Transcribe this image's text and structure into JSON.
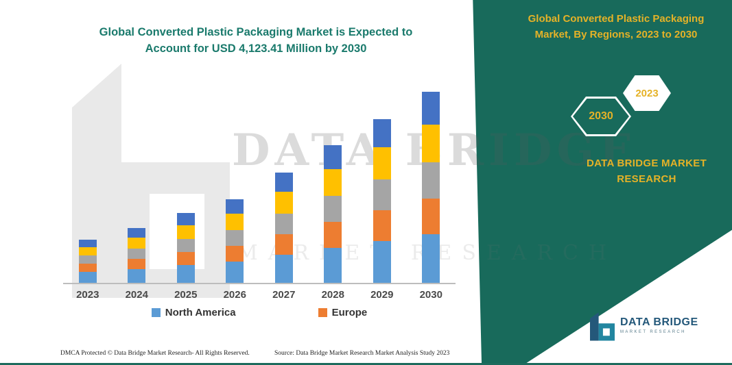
{
  "header": {
    "main_title": "Global Converted Plastic Packaging Market is Expected to Account for USD 4,123.41 Million by 2030"
  },
  "side_panel": {
    "title": "Global Converted Plastic Packaging Market, By Regions, 2023 to 2030",
    "badges": [
      {
        "label": "2030"
      },
      {
        "label": "2023"
      }
    ],
    "brand": "DATA BRIDGE MARKET RESEARCH",
    "colors": {
      "panel": "#186a5b",
      "accent_gold": "#e5b227"
    }
  },
  "watermark": {
    "line1": "DATA BRIDGE",
    "line2": "MARKET RESEARCH"
  },
  "chart_data": {
    "type": "bar",
    "stacked": true,
    "title": "Global Converted Plastic Packaging Market is Expected to Account for USD 4,123.41 Million by 2030",
    "categories": [
      "2023",
      "2024",
      "2025",
      "2026",
      "2027",
      "2028",
      "2029",
      "2030"
    ],
    "series": [
      {
        "name": "North America",
        "color": "#5b9bd5",
        "values": [
          16,
          20,
          26,
          31,
          41,
          51,
          61,
          71
        ]
      },
      {
        "name": "Europe",
        "color": "#ed7d31",
        "values": [
          12,
          15,
          19,
          23,
          30,
          38,
          45,
          52
        ]
      },
      {
        "name": "(unlabeled segment - gray)",
        "color": "#a5a5a5",
        "values": [
          12,
          15,
          19,
          23,
          30,
          38,
          45,
          53
        ]
      },
      {
        "name": "(unlabeled segment - yellow)",
        "color": "#ffc000",
        "values": [
          12,
          16,
          20,
          24,
          32,
          39,
          47,
          55
        ]
      },
      {
        "name": "(unlabeled segment - blue)",
        "color": "#4472c4",
        "values": [
          11,
          14,
          18,
          21,
          28,
          35,
          41,
          48
        ]
      }
    ],
    "value_units": "relative height (no y-axis scale shown in figure)",
    "xlabel": "",
    "ylabel": "",
    "ylim": [
      0,
      300
    ],
    "grid": false,
    "legend": {
      "visible_entries": [
        "North America",
        "Europe"
      ],
      "position": "bottom"
    }
  },
  "legend": [
    {
      "label": "North America",
      "color": "#5b9bd5"
    },
    {
      "label": "Europe",
      "color": "#ed7d31"
    }
  ],
  "footer": {
    "dmca": "DMCA Protected © Data Bridge Market Research-  All Rights Reserved.",
    "source": "Source: Data Bridge Market Research  Market Analysis Study 2023"
  },
  "logo": {
    "name": "DATA BRIDGE",
    "tagline": "MARKET RESEARCH"
  }
}
